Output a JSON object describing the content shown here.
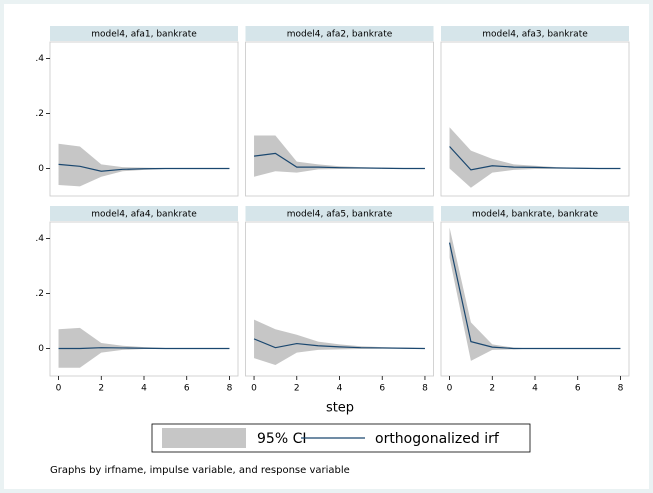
{
  "chart_data": [
    {
      "type": "line",
      "title": "model4, afa1, bankrate",
      "x": [
        0,
        1,
        2,
        3,
        4,
        5,
        6,
        7,
        8
      ],
      "xlim": [
        -0.4,
        8.4
      ],
      "ylim": [
        -0.1,
        0.46
      ],
      "yticks": [
        0,
        {
          "value": 0.2,
          "label": ".2"
        },
        {
          "value": 0.4,
          "label": ".4"
        }
      ],
      "series": [
        {
          "name": "95% CI",
          "color": "#c6c6c6",
          "lower": [
            -0.06,
            -0.065,
            -0.03,
            -0.01,
            -0.005,
            -0.002,
            -0.001,
            0,
            0
          ],
          "upper": [
            0.09,
            0.08,
            0.015,
            0.005,
            0.003,
            0.002,
            0.001,
            0.001,
            0
          ]
        },
        {
          "name": "orthogonalized irf",
          "color": "#1a476f",
          "values": [
            0.015,
            0.008,
            -0.01,
            -0.003,
            -0.001,
            0,
            0,
            0,
            0
          ]
        }
      ]
    },
    {
      "type": "line",
      "title": "model4, afa2, bankrate",
      "x": [
        0,
        1,
        2,
        3,
        4,
        5,
        6,
        7,
        8
      ],
      "xlim": [
        -0.4,
        8.4
      ],
      "ylim": [
        -0.1,
        0.46
      ],
      "series": [
        {
          "name": "95% CI",
          "color": "#c6c6c6",
          "lower": [
            -0.03,
            -0.01,
            -0.015,
            -0.003,
            -0.002,
            -0.001,
            0,
            0,
            0
          ],
          "upper": [
            0.12,
            0.12,
            0.025,
            0.015,
            0.008,
            0.005,
            0.003,
            0.001,
            0.001
          ]
        },
        {
          "name": "orthogonalized irf",
          "color": "#1a476f",
          "values": [
            0.045,
            0.055,
            0.005,
            0.005,
            0.003,
            0.002,
            0.001,
            0,
            0
          ]
        }
      ]
    },
    {
      "type": "line",
      "title": "model4, afa3, bankrate",
      "x": [
        0,
        1,
        2,
        3,
        4,
        5,
        6,
        7,
        8
      ],
      "xlim": [
        -0.4,
        8.4
      ],
      "ylim": [
        -0.1,
        0.46
      ],
      "series": [
        {
          "name": "95% CI",
          "color": "#c6c6c6",
          "lower": [
            0,
            -0.07,
            -0.015,
            -0.005,
            -0.002,
            -0.001,
            0,
            0,
            0
          ],
          "upper": [
            0.15,
            0.065,
            0.035,
            0.015,
            0.01,
            0.005,
            0.003,
            0.001,
            0
          ]
        },
        {
          "name": "orthogonalized irf",
          "color": "#1a476f",
          "values": [
            0.08,
            -0.005,
            0.01,
            0.005,
            0.004,
            0.002,
            0.001,
            0,
            0
          ]
        }
      ]
    },
    {
      "type": "line",
      "title": "model4, afa4, bankrate",
      "x": [
        0,
        1,
        2,
        3,
        4,
        5,
        6,
        7,
        8
      ],
      "xlim": [
        -0.4,
        8.4
      ],
      "ylim": [
        -0.1,
        0.46
      ],
      "yticks": [
        0,
        {
          "value": 0.2,
          "label": ".2"
        },
        {
          "value": 0.4,
          "label": ".4"
        }
      ],
      "xticks": [
        0,
        2,
        4,
        6,
        8
      ],
      "series": [
        {
          "name": "95% CI",
          "color": "#c6c6c6",
          "lower": [
            -0.07,
            -0.07,
            -0.015,
            -0.005,
            -0.002,
            -0.001,
            0,
            0,
            0
          ],
          "upper": [
            0.07,
            0.075,
            0.02,
            0.01,
            0.005,
            0.002,
            0.001,
            0,
            0
          ]
        },
        {
          "name": "orthogonalized irf",
          "color": "#1a476f",
          "values": [
            0,
            0,
            0.003,
            0.002,
            0.001,
            0,
            0,
            0,
            0
          ]
        }
      ]
    },
    {
      "type": "line",
      "title": "model4, afa5, bankrate",
      "x": [
        0,
        1,
        2,
        3,
        4,
        5,
        6,
        7,
        8
      ],
      "xlim": [
        -0.4,
        8.4
      ],
      "ylim": [
        -0.1,
        0.46
      ],
      "xticks": [
        0,
        2,
        4,
        6,
        8
      ],
      "series": [
        {
          "name": "95% CI",
          "color": "#c6c6c6",
          "lower": [
            -0.035,
            -0.06,
            -0.015,
            -0.005,
            -0.003,
            -0.002,
            -0.001,
            0,
            0
          ],
          "upper": [
            0.105,
            0.07,
            0.05,
            0.025,
            0.015,
            0.008,
            0.005,
            0.003,
            0.001
          ]
        },
        {
          "name": "orthogonalized irf",
          "color": "#1a476f",
          "values": [
            0.035,
            0.003,
            0.018,
            0.01,
            0.006,
            0.003,
            0.002,
            0.001,
            0
          ]
        }
      ]
    },
    {
      "type": "line",
      "title": "model4, bankrate, bankrate",
      "x": [
        0,
        1,
        2,
        3,
        4,
        5,
        6,
        7,
        8
      ],
      "xlim": [
        -0.4,
        8.4
      ],
      "ylim": [
        -0.1,
        0.46
      ],
      "xticks": [
        0,
        2,
        4,
        6,
        8
      ],
      "series": [
        {
          "name": "95% CI",
          "color": "#c6c6c6",
          "lower": [
            0.33,
            -0.045,
            -0.005,
            -0.003,
            0,
            0,
            0,
            0,
            0
          ],
          "upper": [
            0.44,
            0.095,
            0.015,
            0.003,
            0,
            0,
            0,
            0,
            0
          ]
        },
        {
          "name": "orthogonalized irf",
          "color": "#1a476f",
          "values": [
            0.385,
            0.025,
            0.005,
            0,
            0,
            0,
            0,
            0,
            0
          ]
        }
      ]
    }
  ],
  "figure": {
    "x_label": "step",
    "note": "Graphs by irfname, impulse variable, and response variable"
  }
}
